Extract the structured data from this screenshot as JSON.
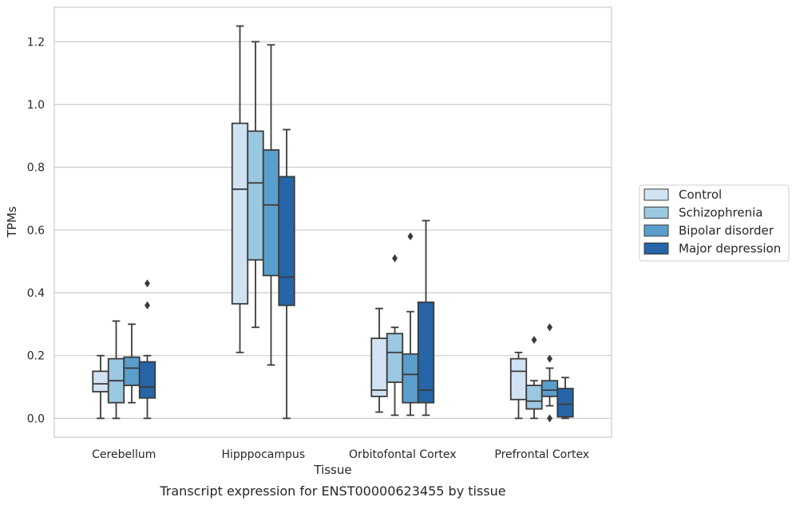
{
  "chart_data": {
    "type": "boxplot",
    "title": "",
    "caption": "Transcript expression for ENST00000623455 by tissue",
    "xlabel": "Tissue",
    "ylabel": "TPMs",
    "ylim": [
      -0.06,
      1.31
    ],
    "yticks": [
      0.0,
      0.2,
      0.4,
      0.6,
      0.8,
      1.0,
      1.2
    ],
    "ytick_labels": [
      "0.0",
      "0.2",
      "0.4",
      "0.6",
      "0.8",
      "1.0",
      "1.2"
    ],
    "grid": "horizontal",
    "legend_position": "right",
    "categories": [
      "Cerebellum",
      "Hipppocampus",
      "Orbitofontal Cortex",
      "Prefrontal Cortex"
    ],
    "series": [
      {
        "name": "Control",
        "color": "#d1e2f2",
        "boxes": [
          {
            "min": 0.0,
            "q1": 0.085,
            "median": 0.11,
            "q3": 0.15,
            "max": 0.2,
            "outliers": []
          },
          {
            "min": 0.21,
            "q1": 0.365,
            "median": 0.73,
            "q3": 0.94,
            "max": 1.25,
            "outliers": []
          },
          {
            "min": 0.02,
            "q1": 0.07,
            "median": 0.09,
            "q3": 0.255,
            "max": 0.35,
            "outliers": []
          },
          {
            "min": 0.0,
            "q1": 0.06,
            "median": 0.15,
            "q3": 0.19,
            "max": 0.21,
            "outliers": []
          }
        ]
      },
      {
        "name": "Schizophrenia",
        "color": "#9ac8e0",
        "boxes": [
          {
            "min": 0.0,
            "q1": 0.05,
            "median": 0.12,
            "q3": 0.19,
            "max": 0.31,
            "outliers": []
          },
          {
            "min": 0.29,
            "q1": 0.505,
            "median": 0.75,
            "q3": 0.915,
            "max": 1.2,
            "outliers": []
          },
          {
            "min": 0.01,
            "q1": 0.115,
            "median": 0.21,
            "q3": 0.27,
            "max": 0.29,
            "outliers": [
              0.51
            ]
          },
          {
            "min": 0.0,
            "q1": 0.03,
            "median": 0.055,
            "q3": 0.105,
            "max": 0.12,
            "outliers": [
              0.25
            ]
          }
        ]
      },
      {
        "name": "Bipolar disorder",
        "color": "#5a9ecc",
        "boxes": [
          {
            "min": 0.05,
            "q1": 0.105,
            "median": 0.16,
            "q3": 0.195,
            "max": 0.3,
            "outliers": []
          },
          {
            "min": 0.17,
            "q1": 0.455,
            "median": 0.68,
            "q3": 0.855,
            "max": 1.19,
            "outliers": []
          },
          {
            "min": 0.01,
            "q1": 0.05,
            "median": 0.14,
            "q3": 0.205,
            "max": 0.34,
            "outliers": [
              0.58
            ]
          },
          {
            "min": 0.04,
            "q1": 0.07,
            "median": 0.09,
            "q3": 0.12,
            "max": 0.16,
            "outliers": [
              0.19,
              0.29,
              0.0
            ]
          }
        ]
      },
      {
        "name": "Major depression",
        "color": "#2565a8",
        "boxes": [
          {
            "min": 0.0,
            "q1": 0.065,
            "median": 0.1,
            "q3": 0.18,
            "max": 0.2,
            "outliers": [
              0.36,
              0.43
            ]
          },
          {
            "min": 0.0,
            "q1": 0.36,
            "median": 0.45,
            "q3": 0.77,
            "max": 0.92,
            "outliers": []
          },
          {
            "min": 0.01,
            "q1": 0.05,
            "median": 0.09,
            "q3": 0.37,
            "max": 0.63,
            "outliers": []
          },
          {
            "min": 0.0,
            "q1": 0.005,
            "median": 0.045,
            "q3": 0.095,
            "max": 0.13,
            "outliers": []
          }
        ]
      }
    ]
  }
}
